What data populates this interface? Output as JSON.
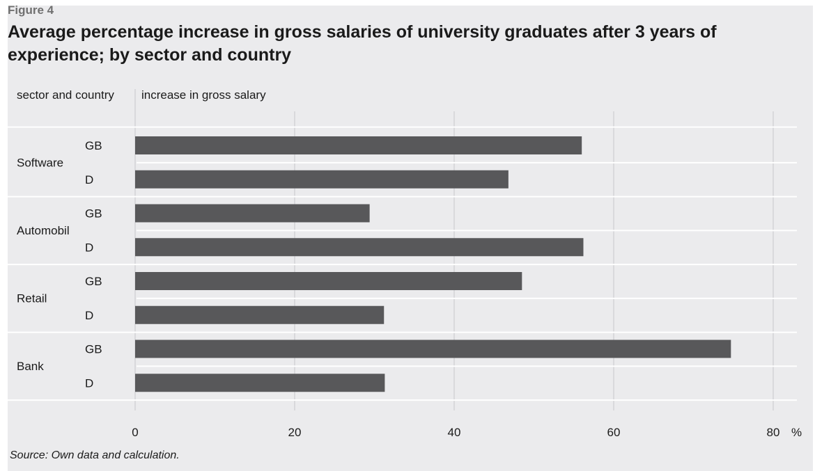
{
  "figure_label": "Figure 4",
  "title": "Average percentage increase in gross salaries of university graduates after 3 years of experience; by sector and country",
  "source": "Source: Own data and calculation.",
  "colors": {
    "panel_background": "#ebebed",
    "bar": "#58585a",
    "grid": "#ffffff",
    "vertical_grid": "#d9d9dc"
  },
  "chart_data": {
    "type": "bar",
    "orientation": "horizontal",
    "row_header": "sector and country",
    "value_header": "increase in gross salary",
    "unit": "%",
    "xlim": [
      0,
      80
    ],
    "x_ticks": [
      0,
      20,
      40,
      60,
      80
    ],
    "grid": true,
    "groups": [
      {
        "sector": "Software",
        "bars": [
          {
            "country": "GB",
            "value": 56
          },
          {
            "country": "D",
            "value": 46.8
          }
        ]
      },
      {
        "sector": "Automobil",
        "bars": [
          {
            "country": "GB",
            "value": 29.4
          },
          {
            "country": "D",
            "value": 56.2
          }
        ]
      },
      {
        "sector": "Retail",
        "bars": [
          {
            "country": "GB",
            "value": 48.5
          },
          {
            "country": "D",
            "value": 31.2
          }
        ]
      },
      {
        "sector": "Bank",
        "bars": [
          {
            "country": "GB",
            "value": 74.7
          },
          {
            "country": "D",
            "value": 31.3
          }
        ]
      }
    ]
  }
}
